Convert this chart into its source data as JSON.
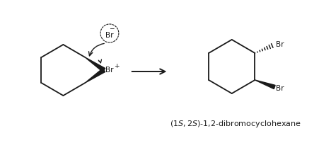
{
  "bg_color": "#ffffff",
  "bond_color": "#1a1a1a",
  "label_color": "#1a1a1a",
  "title_text": "(1S,2S)-1,2-dibromocyclohexane"
}
